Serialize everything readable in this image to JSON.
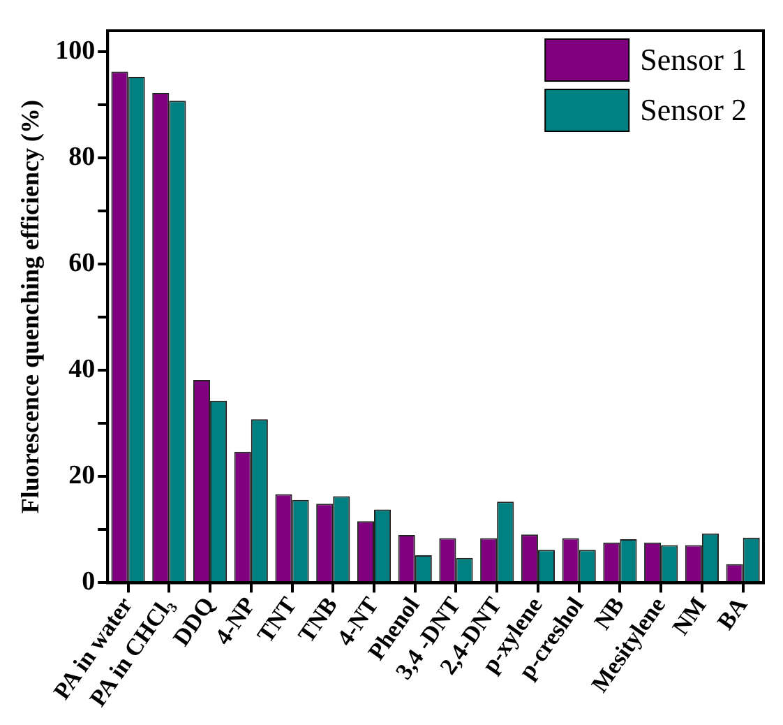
{
  "chart_data": {
    "type": "bar",
    "ylabel": "Fluorescence quenching efficiency (%)",
    "categories": [
      "PA in water",
      "PA in CHCl₃",
      "DDQ",
      "4-NP",
      "TNT",
      "TNB",
      "4-NT",
      "Phenol",
      "3,4 -DNT",
      "2,4-DNT",
      "p-xylene",
      "p-creshol",
      "NB",
      "Mesitylene",
      "NM",
      "BA"
    ],
    "series": [
      {
        "name": "Sensor 1",
        "color": "#800080",
        "values": [
          96.3,
          92.3,
          38.2,
          24.7,
          16.7,
          14.9,
          11.6,
          9.0,
          8.4,
          8.4,
          9.1,
          8.4,
          7.6,
          7.6,
          7.1,
          3.5
        ]
      },
      {
        "name": "Sensor 2",
        "color": "#008080",
        "values": [
          95.3,
          90.8,
          34.3,
          30.8,
          15.6,
          16.3,
          13.8,
          5.2,
          4.7,
          15.3,
          6.2,
          6.2,
          8.2,
          7.1,
          9.3,
          8.5
        ]
      }
    ],
    "ylim": [
      0,
      104
    ],
    "yticks": [
      0,
      {
        "value": 10,
        "label": null
      },
      20,
      {
        "value": 30,
        "label": null
      },
      40,
      {
        "value": 50,
        "label": null
      },
      60,
      {
        "value": 70,
        "label": null
      },
      80,
      {
        "value": 90,
        "label": null
      },
      100
    ],
    "grid": false,
    "legend": "top right"
  }
}
